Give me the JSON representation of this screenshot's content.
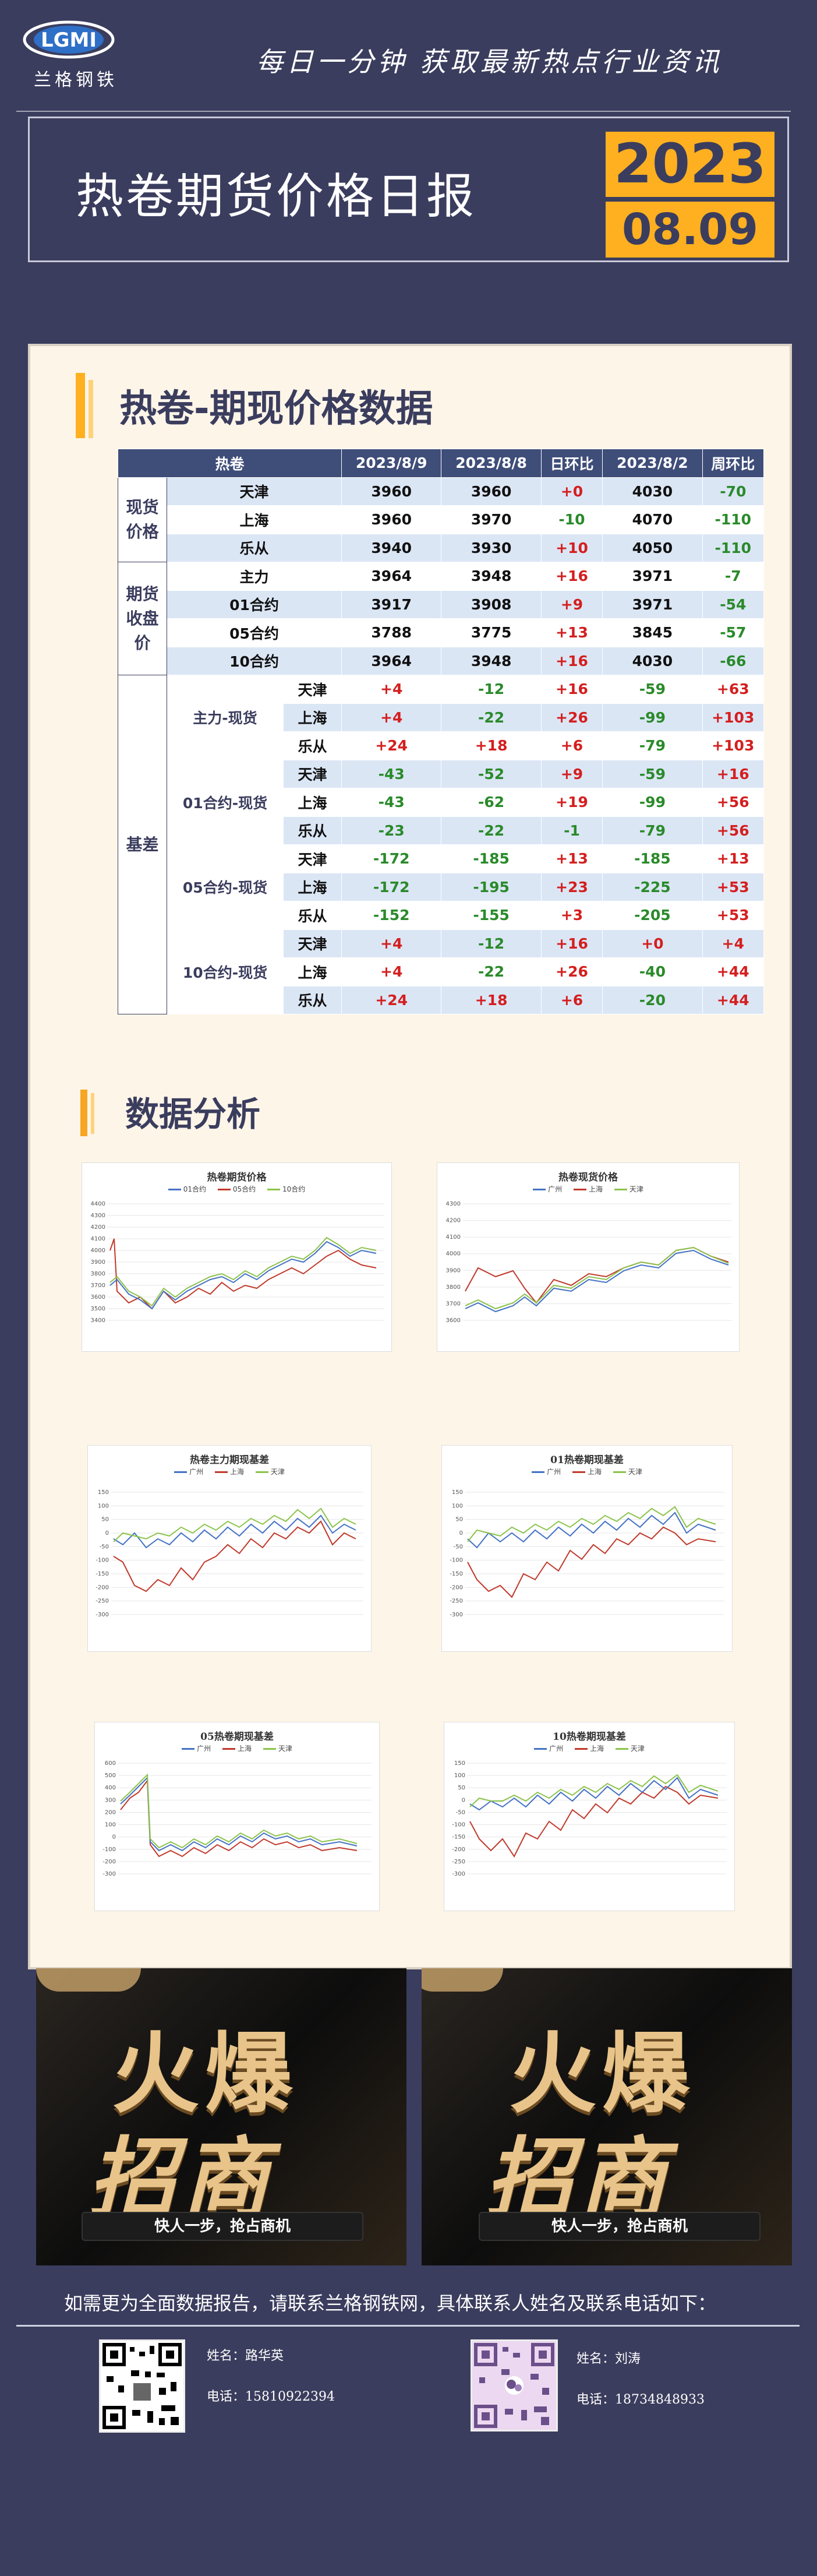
{
  "header": {
    "logo_text": "兰格钢铁",
    "logo_mark": "LGMI",
    "slogan": "每日一分钟  获取最新热点行业资讯",
    "title": "热卷期货价格日报",
    "year": "2023",
    "date": "08.09"
  },
  "section1": {
    "title": "热卷-期现价格数据"
  },
  "table": {
    "headers": [
      "热卷",
      "2023/8/9",
      "2023/8/8",
      "日环比",
      "2023/8/2",
      "周环比"
    ],
    "spot": {
      "label": "现货价格",
      "rows": [
        {
          "name": "天津",
          "v1": "3960",
          "v2": "3960",
          "d": "+0",
          "w": "4030",
          "wk": "-70"
        },
        {
          "name": "上海",
          "v1": "3960",
          "v2": "3970",
          "d": "-10",
          "w": "4070",
          "wk": "-110"
        },
        {
          "name": "乐从",
          "v1": "3940",
          "v2": "3930",
          "d": "+10",
          "w": "4050",
          "wk": "-110"
        }
      ]
    },
    "futures": {
      "label": "期货收盘价",
      "rows": [
        {
          "name": "主力",
          "v1": "3964",
          "v2": "3948",
          "d": "+16",
          "w": "3971",
          "wk": "-7"
        },
        {
          "name": "01合约",
          "v1": "3917",
          "v2": "3908",
          "d": "+9",
          "w": "3971",
          "wk": "-54"
        },
        {
          "name": "05合约",
          "v1": "3788",
          "v2": "3775",
          "d": "+13",
          "w": "3845",
          "wk": "-57"
        },
        {
          "name": "10合约",
          "v1": "3964",
          "v2": "3948",
          "d": "+16",
          "w": "4030",
          "wk": "-66"
        }
      ]
    },
    "basis": {
      "label": "基差",
      "groups": [
        {
          "name": "主力-现货",
          "rows": [
            {
              "loc": "天津",
              "v1": "+4",
              "v2": "-12",
              "d": "+16",
              "w": "-59",
              "wk": "+63"
            },
            {
              "loc": "上海",
              "v1": "+4",
              "v2": "-22",
              "d": "+26",
              "w": "-99",
              "wk": "+103"
            },
            {
              "loc": "乐从",
              "v1": "+24",
              "v2": "+18",
              "d": "+6",
              "w": "-79",
              "wk": "+103"
            }
          ]
        },
        {
          "name": "01合约-现货",
          "rows": [
            {
              "loc": "天津",
              "v1": "-43",
              "v2": "-52",
              "d": "+9",
              "w": "-59",
              "wk": "+16"
            },
            {
              "loc": "上海",
              "v1": "-43",
              "v2": "-62",
              "d": "+19",
              "w": "-99",
              "wk": "+56"
            },
            {
              "loc": "乐从",
              "v1": "-23",
              "v2": "-22",
              "d": "-1",
              "w": "-79",
              "wk": "+56"
            }
          ]
        },
        {
          "name": "05合约-现货",
          "rows": [
            {
              "loc": "天津",
              "v1": "-172",
              "v2": "-185",
              "d": "+13",
              "w": "-185",
              "wk": "+13"
            },
            {
              "loc": "上海",
              "v1": "-172",
              "v2": "-195",
              "d": "+23",
              "w": "-225",
              "wk": "+53"
            },
            {
              "loc": "乐从",
              "v1": "-152",
              "v2": "-155",
              "d": "+3",
              "w": "-205",
              "wk": "+53"
            }
          ]
        },
        {
          "name": "10合约-现货",
          "rows": [
            {
              "loc": "天津",
              "v1": "+4",
              "v2": "-12",
              "d": "+16",
              "w": "+0",
              "wk": "+4"
            },
            {
              "loc": "上海",
              "v1": "+4",
              "v2": "-22",
              "d": "+26",
              "w": "-40",
              "wk": "+44"
            },
            {
              "loc": "乐从",
              "v1": "+24",
              "v2": "+18",
              "d": "+6",
              "w": "-20",
              "wk": "+44"
            }
          ]
        }
      ]
    }
  },
  "section2": {
    "title": "数据分析"
  },
  "charts": [
    {
      "title": "热卷期货价格",
      "legend": [
        "01合约",
        "05合约",
        "10合约"
      ],
      "yticks": [
        "4400",
        "4300",
        "4200",
        "4100",
        "4000",
        "3900",
        "3800",
        "3700",
        "3600",
        "3500",
        "3400"
      ]
    },
    {
      "title": "热卷现货价格",
      "legend": [
        "广州",
        "上海",
        "天津"
      ],
      "yticks": [
        "4300",
        "4200",
        "4100",
        "4000",
        "3900",
        "3800",
        "3700",
        "3600"
      ]
    },
    {
      "title": "热卷主力期现基差",
      "legend": [
        "广州",
        "上海",
        "天津"
      ],
      "yticks": [
        "150",
        "100",
        "50",
        "0",
        "-50",
        "-100",
        "-150",
        "-200",
        "-250",
        "-300"
      ]
    },
    {
      "title": "01热卷期现基差",
      "legend": [
        "广州",
        "上海",
        "天津"
      ],
      "yticks": [
        "150",
        "100",
        "50",
        "0",
        "-50",
        "-100",
        "-150",
        "-200",
        "-250",
        "-300"
      ]
    },
    {
      "title": "05热卷期现基差",
      "legend": [
        "广州",
        "上海",
        "天津"
      ],
      "yticks": [
        "600",
        "500",
        "400",
        "300",
        "200",
        "100",
        "0",
        "-100",
        "-200",
        "-300"
      ]
    },
    {
      "title": "10热卷期现基差",
      "legend": [
        "广州",
        "上海",
        "天津"
      ],
      "yticks": [
        "150",
        "100",
        "50",
        "0",
        "-50",
        "-100",
        "-150",
        "-200",
        "-250",
        "-300"
      ]
    }
  ],
  "ads": [
    {
      "line1": "火爆",
      "line2": "招商",
      "tagline": "快人一步，抢占商机"
    },
    {
      "line1": "火爆",
      "line2": "招商",
      "tagline": "快人一步，抢占商机"
    }
  ],
  "footer": {
    "note": "如需更为全面数据报告，请联系兰格钢铁网，具体联系人姓名及联系电话如下：",
    "contacts": [
      {
        "name_label": "姓名：路华英",
        "phone_label": "电话：15810922394"
      },
      {
        "name_label": "姓名：刘涛",
        "phone_label": "电话：18734848933"
      }
    ]
  },
  "colors": {
    "accent": "#ffb020",
    "navy": "#3b3d5e",
    "table_head": "#3f4d79",
    "positive": "#d41f1f",
    "negative": "#2a8a2a"
  }
}
